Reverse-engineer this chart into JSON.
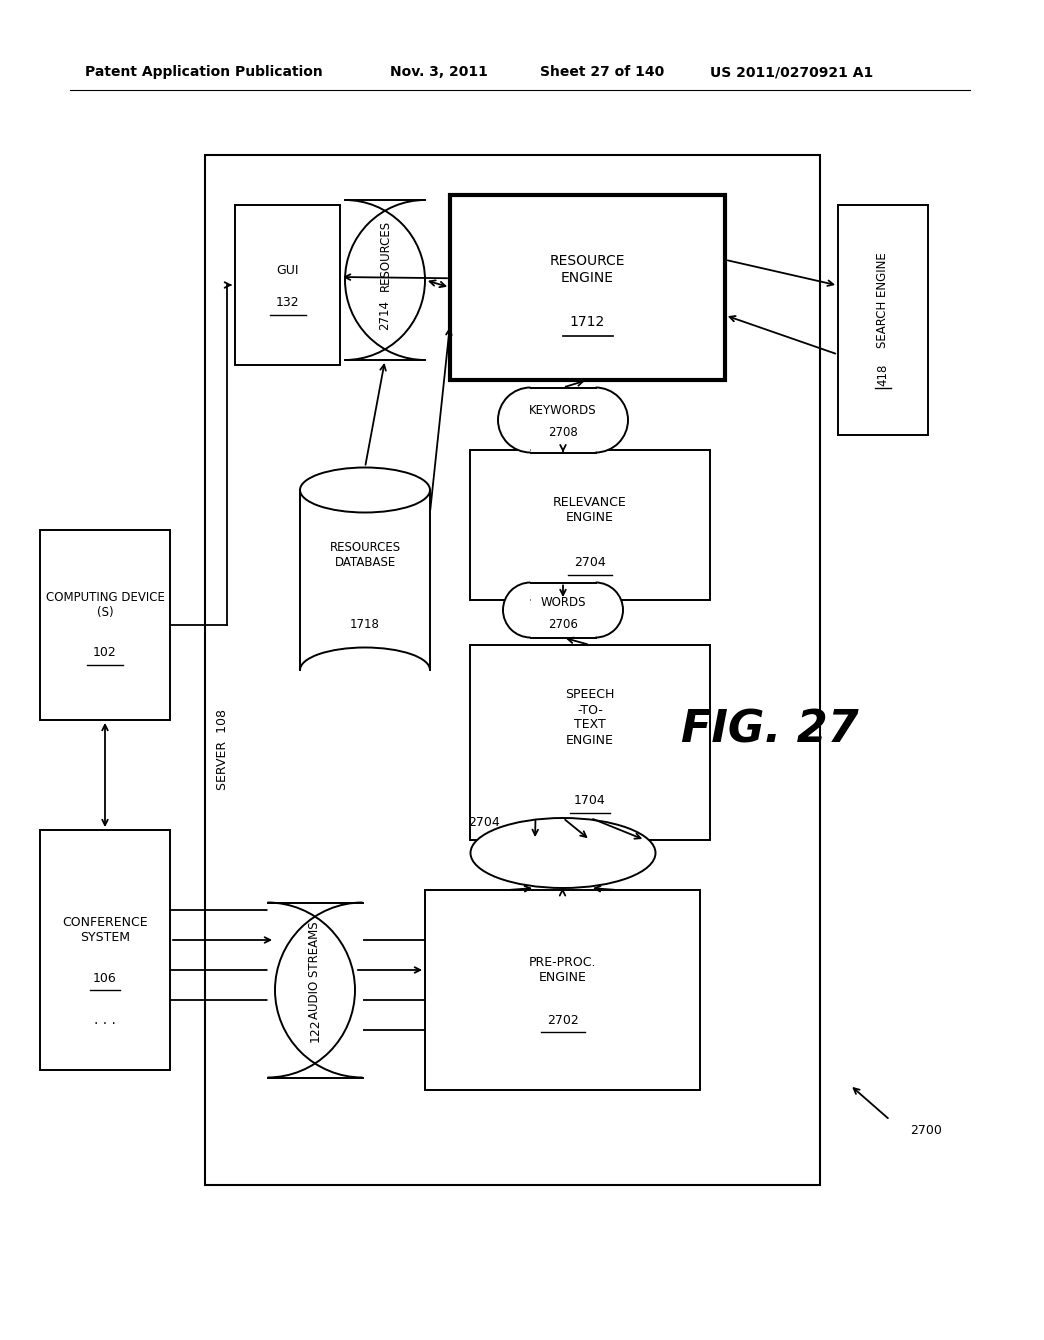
{
  "bg_color": "#ffffff",
  "header_line1": "Patent Application Publication",
  "header_line2": "Nov. 3, 2011",
  "header_line3": "Sheet 27 of 140",
  "header_line4": "US 2011/0270921 A1",
  "fig_label": "FIG. 27",
  "fig_number": "2700"
}
